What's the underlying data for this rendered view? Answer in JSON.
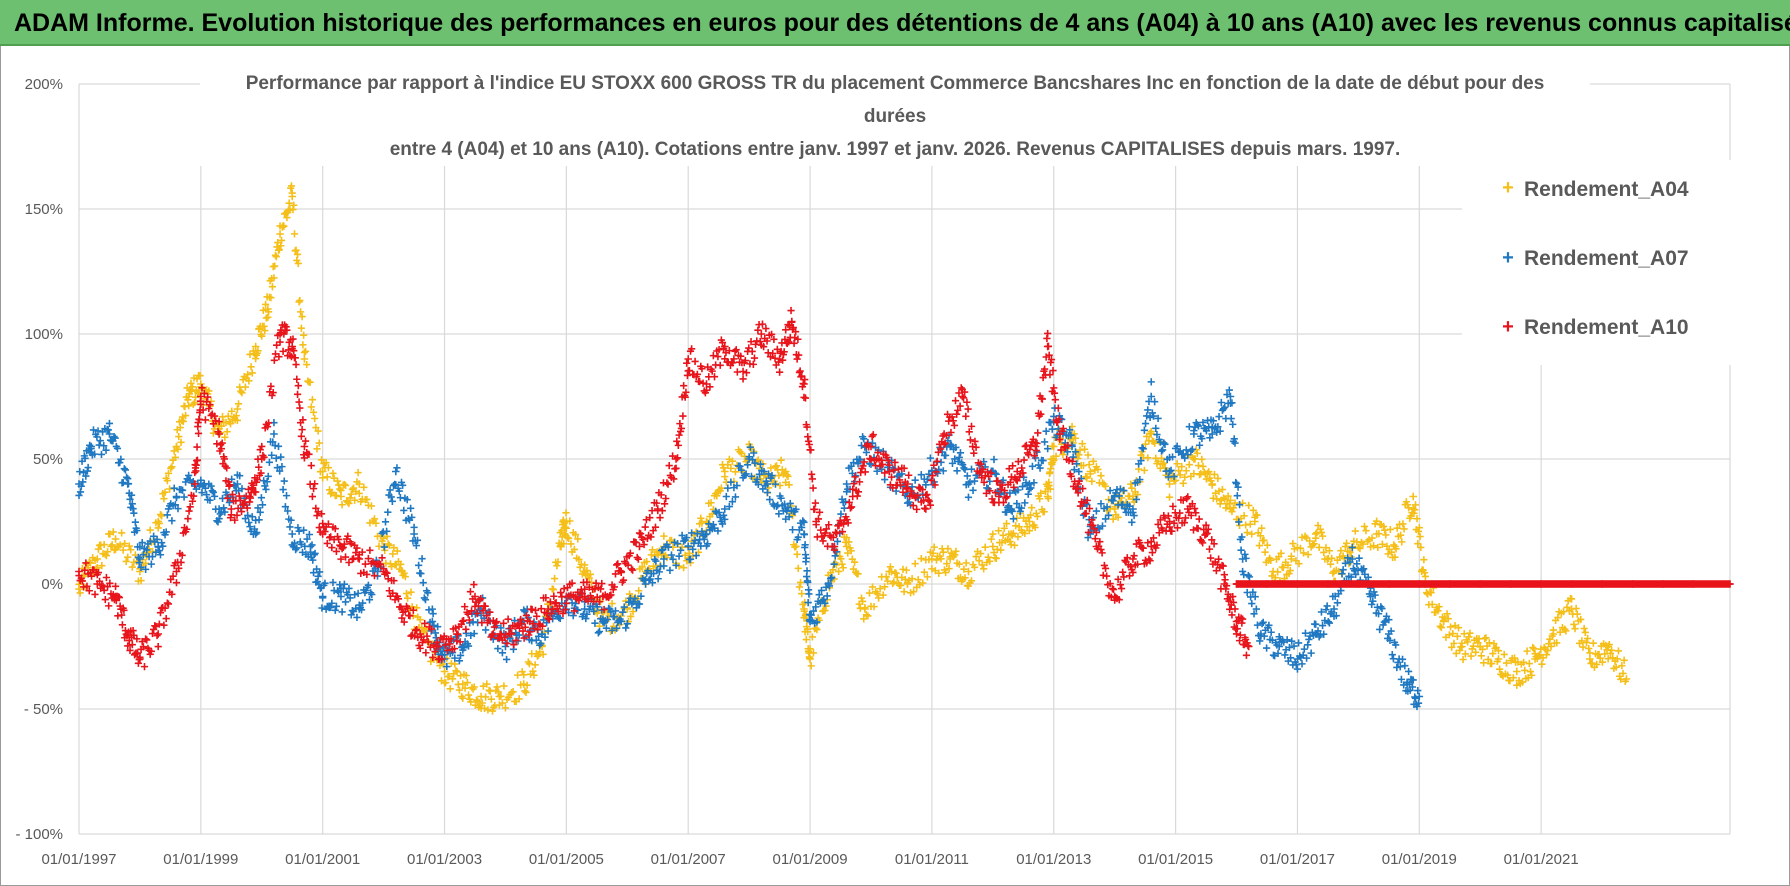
{
  "banner": {
    "title": "ADAM Informe. Evolution historique des performances en euros pour des détentions de 4 ans (A04) à 10 ans (A10) avec les revenus connus capitalisés"
  },
  "colors": {
    "banner_bg": "#6cc070",
    "grid": "#d9d9d9",
    "axis_text": "#595959",
    "A04": "#f5bf1a",
    "A07": "#1f78c1",
    "A10": "#e8141b"
  },
  "chart_data": {
    "type": "scatter",
    "title_lines": [
      "Performance par rapport à l'indice EU STOXX 600 GROSS TR  du placement Commerce Bancshares Inc en fonction de la date de début pour des",
      "durées",
      "entre 4 (A04) et 10 ans (A10). Cotations entre janv. 1997 et janv. 2026. Revenus CAPITALISES depuis mars. 1997."
    ],
    "xlabel": "",
    "ylabel": "",
    "xlim": [
      1997.0,
      2024.1
    ],
    "ylim": [
      -100,
      200
    ],
    "y_ticks": [
      200,
      150,
      100,
      50,
      0,
      -50,
      -100
    ],
    "y_tick_labels": [
      "200%",
      "150%",
      "100%",
      "50%",
      "0%",
      "- 50%",
      "- 100%"
    ],
    "x_ticks": [
      1997,
      1999,
      2001,
      2003,
      2005,
      2007,
      2009,
      2011,
      2013,
      2015,
      2017,
      2019,
      2021
    ],
    "x_tick_labels": [
      "01/01/1997",
      "01/01/1999",
      "01/01/2001",
      "01/01/2003",
      "01/01/2005",
      "01/01/2007",
      "01/01/2009",
      "01/01/2011",
      "01/01/2013",
      "01/01/2015",
      "01/01/2017",
      "01/01/2019",
      "01/01/2021"
    ],
    "legend": {
      "position": "top-right"
    },
    "series": [
      {
        "name": "Rendement_A04",
        "key": "A04",
        "x": [
          1997.0,
          1997.3,
          1997.6,
          1998.0,
          1998.3,
          1998.6,
          1998.8,
          1999.0,
          1999.3,
          1999.6,
          1999.9,
          2000.1,
          2000.3,
          2000.5,
          2000.7,
          2001.0,
          2001.3,
          2001.6,
          2002.0,
          2002.3,
          2002.6,
          2003.0,
          2003.3,
          2003.6,
          2003.9,
          2004.3,
          2004.6,
          2004.9,
          2005.0,
          2005.3,
          2005.6,
          2006.0,
          2006.3,
          2006.6,
          2007.0,
          2007.3,
          2007.6,
          2008.0,
          2008.3,
          2008.6,
          2008.9,
          2009.0,
          2009.3,
          2009.6,
          2009.9,
          2010.3,
          2010.6,
          2011.0,
          2011.3,
          2011.6,
          2012.0,
          2012.3,
          2012.6,
          2012.9,
          2013.0,
          2013.3,
          2013.6,
          2014.0,
          2014.3,
          2014.6,
          2014.9,
          2015.3,
          2015.6,
          2015.9,
          2016.3,
          2016.6,
          2016.9,
          2017.3,
          2017.6,
          2017.9,
          2018.3,
          2018.6,
          2018.9,
          2019.1,
          2019.4,
          2019.7,
          2020.0,
          2020.3,
          2020.6,
          2020.9,
          2021.2,
          2021.5,
          2021.8,
          2022.1,
          2022.4
        ],
        "y": [
          -2,
          10,
          18,
          5,
          25,
          55,
          75,
          80,
          60,
          70,
          95,
          110,
          140,
          155,
          90,
          45,
          35,
          40,
          15,
          5,
          -20,
          -35,
          -40,
          -45,
          -45,
          -40,
          -25,
          15,
          25,
          5,
          -15,
          -10,
          5,
          15,
          10,
          25,
          45,
          50,
          40,
          45,
          -10,
          -30,
          0,
          15,
          -10,
          5,
          0,
          10,
          10,
          5,
          15,
          20,
          25,
          35,
          55,
          60,
          45,
          30,
          35,
          60,
          40,
          50,
          40,
          30,
          25,
          5,
          10,
          20,
          5,
          15,
          20,
          15,
          35,
          0,
          -15,
          -25,
          -25,
          -30,
          -35,
          -30,
          -20,
          -10,
          -30,
          -25,
          -38
        ]
      },
      {
        "name": "Rendement_A07",
        "key": "A07",
        "x": [
          1997.0,
          1997.2,
          1997.5,
          1997.8,
          1998.0,
          1998.3,
          1998.6,
          1999.0,
          1999.3,
          1999.6,
          1999.9,
          2000.2,
          2000.5,
          2000.8,
          2001.0,
          2001.3,
          2001.6,
          2001.9,
          2002.2,
          2002.5,
          2002.8,
          2003.0,
          2003.3,
          2003.6,
          2004.0,
          2004.3,
          2004.6,
          2005.0,
          2005.3,
          2005.6,
          2005.9,
          2006.3,
          2006.6,
          2007.0,
          2007.3,
          2007.6,
          2008.0,
          2008.3,
          2008.6,
          2008.9,
          2009.0,
          2009.3,
          2009.6,
          2009.9,
          2010.3,
          2010.6,
          2011.0,
          2011.3,
          2011.6,
          2012.0,
          2012.3,
          2012.6,
          2013.0,
          2013.3,
          2013.6,
          2014.0,
          2014.3,
          2014.6,
          2014.9,
          2015.3,
          2015.6,
          2015.9,
          2016.1,
          2016.4,
          2016.7,
          2017.0,
          2017.3,
          2017.6,
          2017.9,
          2018.2,
          2018.5,
          2018.8,
          2019.0
        ],
        "y": [
          40,
          55,
          60,
          40,
          10,
          15,
          35,
          40,
          30,
          40,
          20,
          60,
          20,
          15,
          -5,
          -5,
          -10,
          5,
          45,
          20,
          -15,
          -30,
          -25,
          -10,
          -25,
          -15,
          -20,
          -5,
          -10,
          -15,
          -15,
          0,
          10,
          15,
          20,
          30,
          50,
          40,
          30,
          20,
          -15,
          0,
          40,
          55,
          45,
          35,
          45,
          55,
          40,
          45,
          30,
          40,
          65,
          55,
          20,
          35,
          30,
          75,
          45,
          60,
          60,
          75,
          10,
          -20,
          -25,
          -30,
          -20,
          -10,
          10,
          -5,
          -20,
          -40,
          -45
        ]
      },
      {
        "name": "Rendement_A10",
        "key": "A10",
        "x": [
          1997.0,
          1997.3,
          1997.6,
          1997.8,
          1998.0,
          1998.3,
          1998.6,
          1998.9,
          1999.0,
          1999.3,
          1999.5,
          1999.8,
          2000.0,
          2000.3,
          2000.5,
          2000.7,
          2001.0,
          2001.3,
          2001.6,
          2002.0,
          2002.3,
          2002.6,
          2002.9,
          2003.2,
          2003.5,
          2003.8,
          2004.1,
          2004.4,
          2004.7,
          2005.0,
          2005.3,
          2005.6,
          2005.9,
          2006.2,
          2006.5,
          2006.8,
          2007.0,
          2007.3,
          2007.6,
          2007.9,
          2008.2,
          2008.5,
          2008.7,
          2008.9,
          2009.1,
          2009.4,
          2009.7,
          2010.0,
          2010.3,
          2010.6,
          2010.9,
          2011.2,
          2011.5,
          2011.8,
          2012.1,
          2012.4,
          2012.7,
          2012.9,
          2013.1,
          2013.4,
          2013.7,
          2014.0,
          2014.3,
          2014.6,
          2014.9,
          2015.2,
          2015.5,
          2015.8,
          2016.0,
          2016.2
        ],
        "y": [
          5,
          0,
          -5,
          -20,
          -30,
          -20,
          5,
          40,
          75,
          60,
          30,
          35,
          50,
          100,
          95,
          55,
          20,
          15,
          10,
          5,
          -10,
          -20,
          -25,
          -20,
          -5,
          -20,
          -20,
          -15,
          -10,
          -5,
          -5,
          -5,
          5,
          15,
          30,
          50,
          90,
          80,
          95,
          85,
          100,
          90,
          105,
          80,
          25,
          15,
          35,
          55,
          45,
          40,
          30,
          60,
          75,
          45,
          35,
          45,
          55,
          95,
          60,
          40,
          15,
          -5,
          10,
          15,
          25,
          30,
          20,
          0,
          -15,
          -25
        ]
      },
      {
        "name": "Rendement_A10_flat",
        "key": "A10",
        "x": [
          2016.0,
          2016.5,
          2017.0,
          2017.5,
          2018.0,
          2018.5,
          2019.0,
          2019.5,
          2020.0,
          2020.5,
          2021.0,
          2021.5,
          2022.0,
          2022.5,
          2023.0,
          2023.5,
          2024.1
        ],
        "y": [
          0,
          0,
          0,
          0,
          0,
          0,
          0,
          0,
          0,
          0,
          0,
          0,
          0,
          0,
          0,
          0,
          0
        ]
      }
    ]
  },
  "legend_labels": [
    "Rendement_A04",
    "Rendement_A07",
    "Rendement_A10"
  ]
}
